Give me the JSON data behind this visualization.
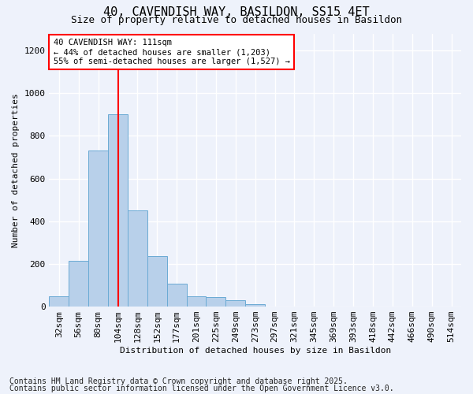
{
  "title1": "40, CAVENDISH WAY, BASILDON, SS15 4ET",
  "title2": "Size of property relative to detached houses in Basildon",
  "xlabel": "Distribution of detached houses by size in Basildon",
  "ylabel": "Number of detached properties",
  "footer1": "Contains HM Land Registry data © Crown copyright and database right 2025.",
  "footer2": "Contains public sector information licensed under the Open Government Licence v3.0.",
  "categories": [
    "32sqm",
    "56sqm",
    "80sqm",
    "104sqm",
    "128sqm",
    "152sqm",
    "177sqm",
    "201sqm",
    "225sqm",
    "249sqm",
    "273sqm",
    "297sqm",
    "321sqm",
    "345sqm",
    "369sqm",
    "393sqm",
    "418sqm",
    "442sqm",
    "466sqm",
    "490sqm",
    "514sqm"
  ],
  "values": [
    50,
    215,
    730,
    900,
    450,
    237,
    107,
    50,
    45,
    30,
    13,
    0,
    0,
    0,
    0,
    0,
    0,
    0,
    0,
    0,
    0
  ],
  "bar_color": "#b8d0ea",
  "bar_edge_color": "#6aaad4",
  "vline_x": 3.0,
  "vline_color": "red",
  "annotation_title": "40 CAVENDISH WAY: 111sqm",
  "annotation_line1": "← 44% of detached houses are smaller (1,203)",
  "annotation_line2": "55% of semi-detached houses are larger (1,527) →",
  "annotation_box_color": "white",
  "annotation_box_edge": "red",
  "ylim": [
    0,
    1280
  ],
  "yticks": [
    0,
    200,
    400,
    600,
    800,
    1000,
    1200
  ],
  "background_color": "#eef2fb",
  "grid_color": "white",
  "title_fontsize": 11,
  "subtitle_fontsize": 9,
  "axis_fontsize": 8,
  "tick_fontsize": 8,
  "footer_fontsize": 7
}
